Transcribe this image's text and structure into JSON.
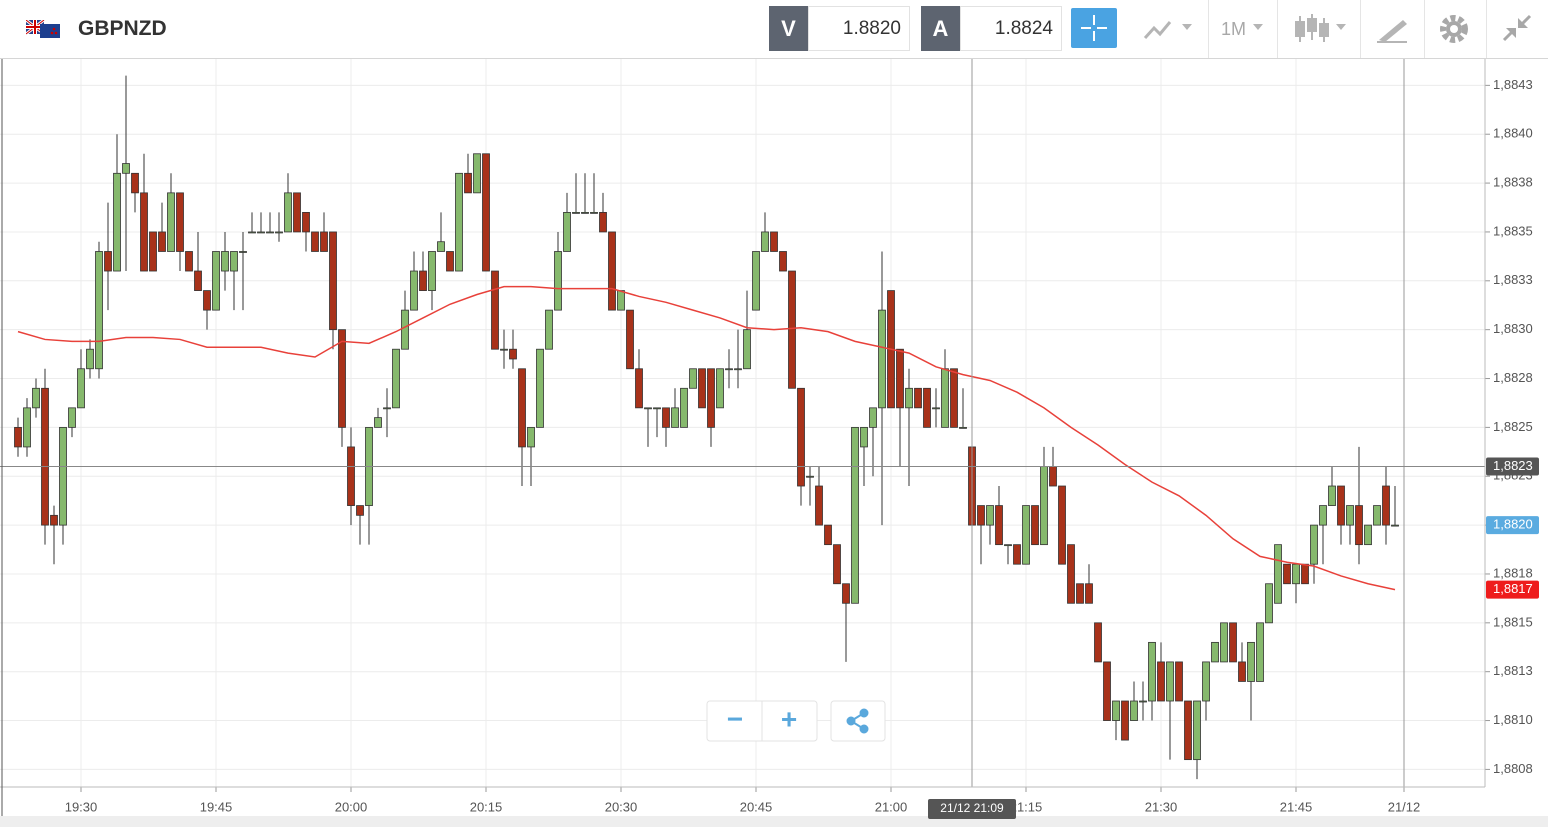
{
  "header": {
    "symbol": "GBPNZD",
    "bid_label": "V",
    "bid": "1.8820",
    "ask_label": "A",
    "ask": "1.8824",
    "timeframe": "1M"
  },
  "controls": {
    "zoom_out": "−",
    "zoom_in": "+"
  },
  "chart_data": {
    "type": "candlestick",
    "up_color": "#86b96d",
    "down_color": "#a8321a",
    "xlim": [
      "19:21",
      "22:06"
    ],
    "xticks": [
      "19:30",
      "19:45",
      "20:00",
      "20:15",
      "20:30",
      "20:45",
      "21:00",
      "21:15",
      "21:30",
      "21:45",
      {
        "value": "21:57",
        "label": "21/12"
      }
    ],
    "ylim": [
      1.88066,
      1.88439
    ],
    "yticks": [
      {
        "value": 1.88425,
        "label": "1,8843"
      },
      {
        "value": 1.884,
        "label": "1,8840"
      },
      {
        "value": 1.88375,
        "label": "1,8838"
      },
      {
        "value": 1.8835,
        "label": "1,8835"
      },
      {
        "value": 1.88325,
        "label": "1,8833"
      },
      {
        "value": 1.883,
        "label": "1,8830"
      },
      {
        "value": 1.88275,
        "label": "1,8828"
      },
      {
        "value": 1.8825,
        "label": "1,8825"
      },
      {
        "value": 1.88225,
        "label": "1,8823"
      },
      {
        "value": 1.882,
        "label": "1,8820"
      },
      {
        "value": 1.88175,
        "label": "1,8818"
      },
      {
        "value": 1.8815,
        "label": "1,8815"
      },
      {
        "value": 1.88125,
        "label": "1,8813"
      },
      {
        "value": 1.881,
        "label": "1,8810"
      },
      {
        "value": 1.88075,
        "label": "1,8808"
      }
    ],
    "grid": true,
    "x": [
      "19:23",
      "19:24",
      "19:25",
      "19:26",
      "19:27",
      "19:28",
      "19:29",
      "19:30",
      "19:31",
      "19:32",
      "19:33",
      "19:34",
      "19:35",
      "19:36",
      "19:37",
      "19:38",
      "19:39",
      "19:40",
      "19:41",
      "19:42",
      "19:43",
      "19:44",
      "19:45",
      "19:46",
      "19:47",
      "19:48",
      "19:49",
      "19:50",
      "19:51",
      "19:52",
      "19:53",
      "19:54",
      "19:55",
      "19:56",
      "19:57",
      "19:58",
      "19:59",
      "20:00",
      "20:01",
      "20:02",
      "20:03",
      "20:04",
      "20:05",
      "20:06",
      "20:07",
      "20:08",
      "20:09",
      "20:10",
      "20:11",
      "20:12",
      "20:13",
      "20:14",
      "20:15",
      "20:16",
      "20:17",
      "20:18",
      "20:19",
      "20:20",
      "20:21",
      "20:22",
      "20:23",
      "20:24",
      "20:25",
      "20:26",
      "20:27",
      "20:28",
      "20:29",
      "20:30",
      "20:31",
      "20:32",
      "20:33",
      "20:34",
      "20:35",
      "20:36",
      "20:37",
      "20:38",
      "20:39",
      "20:40",
      "20:41",
      "20:42",
      "20:43",
      "20:44",
      "20:45",
      "20:46",
      "20:47",
      "20:48",
      "20:49",
      "20:50",
      "20:51",
      "20:52",
      "20:53",
      "20:54",
      "20:55",
      "20:56",
      "20:57",
      "20:58",
      "20:59",
      "21:00",
      "21:01",
      "21:02",
      "21:03",
      "21:04",
      "21:05",
      "21:06",
      "21:07",
      "21:08",
      "21:09",
      "21:10",
      "21:11",
      "21:12",
      "21:13",
      "21:14",
      "21:15",
      "21:16",
      "21:17",
      "21:18",
      "21:19",
      "21:20",
      "21:21",
      "21:22",
      "21:23",
      "21:24",
      "21:25",
      "21:26",
      "21:27",
      "21:28",
      "21:29",
      "21:30",
      "21:31",
      "21:32",
      "21:33",
      "21:34",
      "21:35",
      "21:36",
      "21:37",
      "21:38",
      "21:39",
      "21:40",
      "21:41",
      "21:42",
      "21:43",
      "21:44",
      "21:45",
      "21:46",
      "21:47",
      "21:48",
      "21:49",
      "21:50",
      "21:51",
      "21:52",
      "21:53",
      "21:54",
      "21:55",
      "21:56"
    ],
    "ohlc": [
      [
        1.8825,
        1.88255,
        1.88235,
        1.8824
      ],
      [
        1.8824,
        1.88265,
        1.88235,
        1.8826
      ],
      [
        1.8826,
        1.88275,
        1.88255,
        1.8827
      ],
      [
        1.8827,
        1.8828,
        1.8819,
        1.882
      ],
      [
        1.88205,
        1.8821,
        1.8818,
        1.882
      ],
      [
        1.882,
        1.8825,
        1.8819,
        1.8825
      ],
      [
        1.8825,
        1.8826,
        1.88245,
        1.8826
      ],
      [
        1.8826,
        1.8829,
        1.8826,
        1.8828
      ],
      [
        1.8828,
        1.88295,
        1.88275,
        1.8829
      ],
      [
        1.8828,
        1.88345,
        1.88275,
        1.8834
      ],
      [
        1.8834,
        1.88365,
        1.8831,
        1.8833
      ],
      [
        1.8833,
        1.884,
        1.8833,
        1.8838
      ],
      [
        1.8838,
        1.8843,
        1.8833,
        1.88385
      ],
      [
        1.8838,
        1.8838,
        1.8836,
        1.8837
      ],
      [
        1.8837,
        1.8839,
        1.8833,
        1.8833
      ],
      [
        1.8835,
        1.8835,
        1.8833,
        1.8833
      ],
      [
        1.8835,
        1.88365,
        1.8834,
        1.8834
      ],
      [
        1.8834,
        1.8838,
        1.8834,
        1.8837
      ],
      [
        1.8837,
        1.8837,
        1.8833,
        1.8834
      ],
      [
        1.8834,
        1.8834,
        1.8833,
        1.8833
      ],
      [
        1.8833,
        1.8835,
        1.8832,
        1.8832
      ],
      [
        1.8832,
        1.8832,
        1.883,
        1.8831
      ],
      [
        1.8831,
        1.8834,
        1.8831,
        1.8834
      ],
      [
        1.8833,
        1.8835,
        1.8832,
        1.8834
      ],
      [
        1.8833,
        1.8834,
        1.8831,
        1.8834
      ],
      [
        1.8834,
        1.8835,
        1.8831,
        1.8834
      ],
      [
        1.8835,
        1.8836,
        1.8835,
        1.8835
      ],
      [
        1.8835,
        1.8836,
        1.8835,
        1.8835
      ],
      [
        1.8835,
        1.8836,
        1.8835,
        1.8835
      ],
      [
        1.8835,
        1.8836,
        1.88345,
        1.8835
      ],
      [
        1.8835,
        1.8838,
        1.8835,
        1.8837
      ],
      [
        1.8837,
        1.8837,
        1.8835,
        1.8835
      ],
      [
        1.8836,
        1.8836,
        1.8834,
        1.8835
      ],
      [
        1.8835,
        1.8835,
        1.8834,
        1.8834
      ],
      [
        1.8835,
        1.8836,
        1.8834,
        1.8834
      ],
      [
        1.8835,
        1.8835,
        1.8829,
        1.883
      ],
      [
        1.883,
        1.883,
        1.8824,
        1.8825
      ],
      [
        1.8824,
        1.8825,
        1.882,
        1.8821
      ],
      [
        1.8821,
        1.8821,
        1.8819,
        1.88205
      ],
      [
        1.8821,
        1.8825,
        1.8819,
        1.8825
      ],
      [
        1.8825,
        1.8826,
        1.8825,
        1.88255
      ],
      [
        1.8826,
        1.8827,
        1.88245,
        1.8826
      ],
      [
        1.8826,
        1.8829,
        1.8826,
        1.8829
      ],
      [
        1.8829,
        1.8832,
        1.8829,
        1.8831
      ],
      [
        1.8831,
        1.8834,
        1.8831,
        1.8833
      ],
      [
        1.8833,
        1.8834,
        1.8832,
        1.8832
      ],
      [
        1.8832,
        1.8834,
        1.8831,
        1.8834
      ],
      [
        1.8834,
        1.8836,
        1.8834,
        1.88345
      ],
      [
        1.8834,
        1.8834,
        1.8833,
        1.8833
      ],
      [
        1.8833,
        1.8838,
        1.8833,
        1.8838
      ],
      [
        1.8838,
        1.8839,
        1.8837,
        1.8837
      ],
      [
        1.8837,
        1.8839,
        1.8837,
        1.8839
      ],
      [
        1.8839,
        1.8839,
        1.8833,
        1.8833
      ],
      [
        1.8833,
        1.8833,
        1.8829,
        1.8829
      ],
      [
        1.8829,
        1.883,
        1.8828,
        1.8829
      ],
      [
        1.8829,
        1.883,
        1.8828,
        1.88285
      ],
      [
        1.8828,
        1.8828,
        1.8822,
        1.8824
      ],
      [
        1.8824,
        1.8825,
        1.8822,
        1.8825
      ],
      [
        1.8825,
        1.8829,
        1.8825,
        1.8829
      ],
      [
        1.8829,
        1.8831,
        1.8829,
        1.8831
      ],
      [
        1.8831,
        1.8835,
        1.8831,
        1.8834
      ],
      [
        1.8834,
        1.8837,
        1.8834,
        1.8836
      ],
      [
        1.8836,
        1.8838,
        1.8836,
        1.8836
      ],
      [
        1.8836,
        1.8838,
        1.8836,
        1.8836
      ],
      [
        1.8836,
        1.8838,
        1.8836,
        1.8836
      ],
      [
        1.8836,
        1.8837,
        1.8835,
        1.8835
      ],
      [
        1.8835,
        1.8835,
        1.8831,
        1.8831
      ],
      [
        1.8831,
        1.8832,
        1.8831,
        1.8832
      ],
      [
        1.8831,
        1.8831,
        1.8828,
        1.8828
      ],
      [
        1.8828,
        1.8829,
        1.8826,
        1.8826
      ],
      [
        1.8826,
        1.8826,
        1.8824,
        1.8826
      ],
      [
        1.8826,
        1.8826,
        1.88245,
        1.8826
      ],
      [
        1.8826,
        1.8826,
        1.8824,
        1.8825
      ],
      [
        1.8825,
        1.8827,
        1.8825,
        1.8826
      ],
      [
        1.8825,
        1.8827,
        1.8825,
        1.8827
      ],
      [
        1.8827,
        1.8828,
        1.8827,
        1.8828
      ],
      [
        1.8828,
        1.8828,
        1.8826,
        1.8826
      ],
      [
        1.8828,
        1.8828,
        1.8824,
        1.8825
      ],
      [
        1.8826,
        1.8828,
        1.8826,
        1.8828
      ],
      [
        1.8828,
        1.8829,
        1.8827,
        1.8828
      ],
      [
        1.8828,
        1.883,
        1.8827,
        1.8828
      ],
      [
        1.8828,
        1.8832,
        1.8828,
        1.883
      ],
      [
        1.8831,
        1.8834,
        1.8831,
        1.8834
      ],
      [
        1.8834,
        1.8836,
        1.8834,
        1.8835
      ],
      [
        1.8835,
        1.8835,
        1.8834,
        1.8834
      ],
      [
        1.8834,
        1.8834,
        1.8833,
        1.8833
      ],
      [
        1.8833,
        1.8833,
        1.8827,
        1.8827
      ],
      [
        1.8827,
        1.8827,
        1.8821,
        1.8822
      ],
      [
        1.88225,
        1.8823,
        1.8821,
        1.88225
      ],
      [
        1.8822,
        1.8823,
        1.882,
        1.882
      ],
      [
        1.882,
        1.882,
        1.8819,
        1.8819
      ],
      [
        1.8819,
        1.8819,
        1.8817,
        1.8817
      ],
      [
        1.8817,
        1.8817,
        1.8813,
        1.8816
      ],
      [
        1.8816,
        1.8825,
        1.8816,
        1.8825
      ],
      [
        1.8824,
        1.8825,
        1.8822,
        1.8825
      ],
      [
        1.8825,
        1.8826,
        1.88225,
        1.8826
      ],
      [
        1.8826,
        1.8834,
        1.882,
        1.8831
      ],
      [
        1.8832,
        1.8832,
        1.8826,
        1.8826
      ],
      [
        1.8829,
        1.8829,
        1.8823,
        1.8826
      ],
      [
        1.8826,
        1.8828,
        1.8822,
        1.8827
      ],
      [
        1.8827,
        1.8827,
        1.8826,
        1.8826
      ],
      [
        1.8827,
        1.8827,
        1.8825,
        1.8825
      ],
      [
        1.8826,
        1.8827,
        1.8825,
        1.8826
      ],
      [
        1.8825,
        1.8829,
        1.8825,
        1.8828
      ],
      [
        1.8828,
        1.8828,
        1.8825,
        1.8825
      ],
      [
        1.8825,
        1.8827,
        1.8825,
        1.8825
      ],
      [
        1.8824,
        1.8824,
        1.882,
        1.882
      ],
      [
        1.8821,
        1.8821,
        1.8818,
        1.882
      ],
      [
        1.882,
        1.8821,
        1.8819,
        1.8821
      ],
      [
        1.8821,
        1.8822,
        1.8819,
        1.8819
      ],
      [
        1.8819,
        1.8819,
        1.8818,
        1.8819
      ],
      [
        1.8819,
        1.8819,
        1.8818,
        1.8818
      ],
      [
        1.8818,
        1.8821,
        1.8818,
        1.8821
      ],
      [
        1.8821,
        1.8821,
        1.8819,
        1.8819
      ],
      [
        1.8819,
        1.8824,
        1.8819,
        1.8823
      ],
      [
        1.8823,
        1.8824,
        1.8822,
        1.8822
      ],
      [
        1.8822,
        1.8822,
        1.8818,
        1.8818
      ],
      [
        1.8819,
        1.8819,
        1.8816,
        1.8816
      ],
      [
        1.8817,
        1.8817,
        1.8816,
        1.8816
      ],
      [
        1.8817,
        1.8818,
        1.8816,
        1.8816
      ],
      [
        1.8815,
        1.8815,
        1.8813,
        1.8813
      ],
      [
        1.8813,
        1.8813,
        1.881,
        1.881
      ],
      [
        1.881,
        1.8811,
        1.8809,
        1.8811
      ],
      [
        1.8811,
        1.8811,
        1.8809,
        1.8809
      ],
      [
        1.881,
        1.8812,
        1.881,
        1.8811
      ],
      [
        1.8811,
        1.8812,
        1.881,
        1.8811
      ],
      [
        1.8811,
        1.8814,
        1.881,
        1.8814
      ],
      [
        1.8813,
        1.8814,
        1.8811,
        1.8811
      ],
      [
        1.8811,
        1.8813,
        1.8808,
        1.8813
      ],
      [
        1.8813,
        1.8813,
        1.8811,
        1.8811
      ],
      [
        1.8811,
        1.8811,
        1.8808,
        1.8808
      ],
      [
        1.8808,
        1.8811,
        1.8807,
        1.8811
      ],
      [
        1.8811,
        1.8813,
        1.881,
        1.8813
      ],
      [
        1.8813,
        1.8814,
        1.8813,
        1.8814
      ],
      [
        1.8813,
        1.8815,
        1.8813,
        1.8815
      ],
      [
        1.8815,
        1.8815,
        1.8813,
        1.8813
      ],
      [
        1.8813,
        1.8814,
        1.8812,
        1.8812
      ],
      [
        1.8812,
        1.8814,
        1.881,
        1.8814
      ],
      [
        1.8812,
        1.8815,
        1.8812,
        1.8815
      ],
      [
        1.8815,
        1.8817,
        1.8815,
        1.8817
      ],
      [
        1.8816,
        1.8819,
        1.8816,
        1.8819
      ],
      [
        1.8818,
        1.8818,
        1.8817,
        1.8817
      ],
      [
        1.8817,
        1.8818,
        1.8816,
        1.8818
      ],
      [
        1.8818,
        1.8818,
        1.8817,
        1.8817
      ],
      [
        1.8818,
        1.882,
        1.8817,
        1.882
      ],
      [
        1.882,
        1.8821,
        1.8818,
        1.8821
      ],
      [
        1.8821,
        1.8823,
        1.8821,
        1.8822
      ],
      [
        1.8822,
        1.8822,
        1.8819,
        1.882
      ],
      [
        1.882,
        1.8821,
        1.8819,
        1.8821
      ],
      [
        1.8821,
        1.8824,
        1.8818,
        1.8819
      ],
      [
        1.8819,
        1.882,
        1.8819,
        1.882
      ],
      [
        1.882,
        1.8821,
        1.882,
        1.8821
      ],
      [
        1.8822,
        1.8823,
        1.8819,
        1.882
      ],
      [
        1.882,
        1.8822,
        1.882,
        1.882
      ]
    ],
    "series": [
      {
        "color": "#e8413a",
        "x": [
          "19:23",
          "19:26",
          "19:29",
          "19:32",
          "19:35",
          "19:38",
          "19:41",
          "19:44",
          "19:47",
          "19:50",
          "19:53",
          "19:56",
          "19:59",
          "20:02",
          "20:05",
          "20:08",
          "20:11",
          "20:14",
          "20:17",
          "20:20",
          "20:23",
          "20:26",
          "20:29",
          "20:32",
          "20:35",
          "20:38",
          "20:41",
          "20:44",
          "20:47",
          "20:50",
          "20:53",
          "20:56",
          "20:59",
          "21:02",
          "21:05",
          "21:08",
          "21:11",
          "21:14",
          "21:17",
          "21:20",
          "21:23",
          "21:26",
          "21:29",
          "21:32",
          "21:35",
          "21:38",
          "21:41",
          "21:44",
          "21:47",
          "21:50",
          "21:53",
          "21:56"
        ],
        "values": [
          1.88299,
          1.88295,
          1.88294,
          1.88294,
          1.88296,
          1.88296,
          1.88295,
          1.88291,
          1.88291,
          1.88291,
          1.88288,
          1.88286,
          1.88294,
          1.88293,
          1.88299,
          1.88306,
          1.88313,
          1.88318,
          1.88322,
          1.88322,
          1.88321,
          1.88321,
          1.88321,
          1.88317,
          1.88314,
          1.8831,
          1.88306,
          1.88301,
          1.883,
          1.88301,
          1.88299,
          1.88294,
          1.88291,
          1.88288,
          1.88281,
          1.88277,
          1.88274,
          1.88268,
          1.8826,
          1.8825,
          1.88241,
          1.88231,
          1.88222,
          1.88215,
          1.88205,
          1.88193,
          1.88184,
          1.88181,
          1.88179,
          1.88174,
          1.8817,
          1.88167
        ]
      }
    ],
    "price_badges": [
      {
        "value": 1.882,
        "label": "1,8820",
        "color": "#5aabe0"
      },
      {
        "value": 1.88167,
        "label": "1,8817",
        "color": "#ee1c1c"
      }
    ],
    "crosshair": {
      "x": "21:09",
      "x_label": "21/12 21:09",
      "y": 1.8823,
      "y_label": "1,8823"
    }
  }
}
